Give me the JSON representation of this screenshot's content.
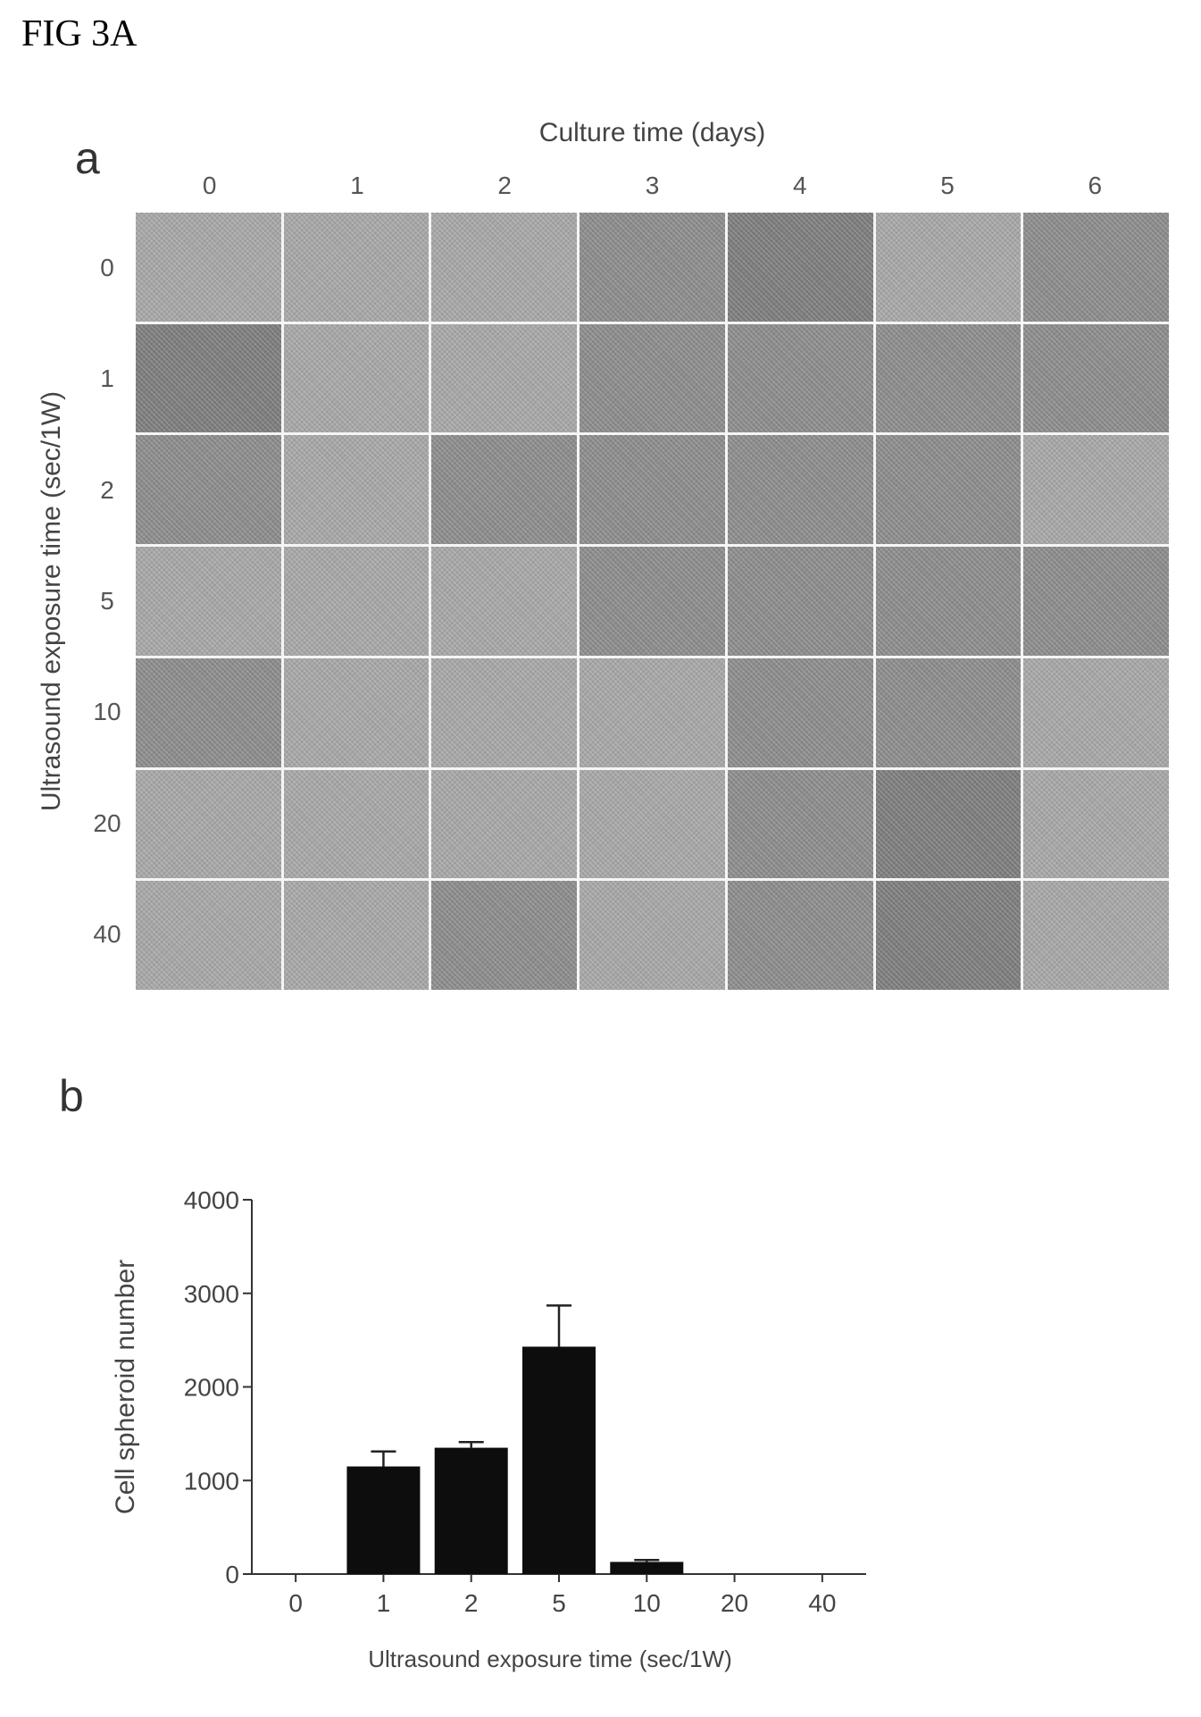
{
  "figure_label": "FIG 3A",
  "panel_a": {
    "letter": "a",
    "x_title": "Culture time (days)",
    "y_title": "Ultrasound exposure time (sec/1W)",
    "columns": [
      "0",
      "1",
      "2",
      "3",
      "4",
      "5",
      "6"
    ],
    "rows": [
      "0",
      "1",
      "2",
      "5",
      "10",
      "20",
      "40"
    ]
  },
  "panel_b": {
    "letter": "b"
  },
  "chart_data": [
    {
      "type": "heatmap",
      "title": "",
      "xlabel": "Culture time (days)",
      "ylabel": "Ultrasound exposure time (sec/1W)",
      "x_categories": [
        "0",
        "1",
        "2",
        "3",
        "4",
        "5",
        "6"
      ],
      "y_categories": [
        "0",
        "1",
        "2",
        "5",
        "10",
        "20",
        "40"
      ],
      "tone": [
        [
          "light",
          "light",
          "light",
          "mid",
          "dark",
          "light",
          "mid"
        ],
        [
          "dark",
          "light",
          "light",
          "mid",
          "mid",
          "mid",
          "mid"
        ],
        [
          "mid",
          "light",
          "mid",
          "mid",
          "mid",
          "mid",
          "light"
        ],
        [
          "light",
          "light",
          "light",
          "mid",
          "mid",
          "mid",
          "mid"
        ],
        [
          "mid",
          "light",
          "light",
          "light",
          "mid",
          "mid",
          "light"
        ],
        [
          "light",
          "light",
          "light",
          "light",
          "mid",
          "dark",
          "light"
        ],
        [
          "light",
          "light",
          "mid",
          "light",
          "mid",
          "dark",
          "light"
        ]
      ]
    },
    {
      "type": "bar",
      "title": "",
      "categories": [
        "0",
        "1",
        "2",
        "5",
        "10",
        "20",
        "40"
      ],
      "values": [
        0,
        1150,
        1350,
        2430,
        130,
        0,
        0
      ],
      "errors": [
        0,
        160,
        60,
        440,
        20,
        0,
        0
      ],
      "xlabel": "Ultrasound exposure time (sec/1W)",
      "ylabel": "Cell spheroid number",
      "ylim": [
        0,
        4000
      ],
      "yticks": [
        "0",
        "1000",
        "2000",
        "3000",
        "4000"
      ],
      "bar_color": "#0d0d0d"
    }
  ]
}
